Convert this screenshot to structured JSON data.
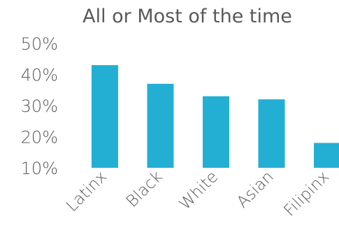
{
  "chart_data": {
    "type": "bar",
    "title": "All or Most of the time",
    "categories": [
      "Latinx",
      "Black",
      "White",
      "Asian",
      "Filipinx"
    ],
    "values": [
      43,
      37,
      33,
      32,
      18
    ],
    "ylim": [
      10,
      50
    ],
    "yticks": [
      "10%",
      "20%",
      "30%",
      "40%",
      "50%"
    ],
    "grid": false,
    "colors": {
      "bar": "#23AFD3",
      "text": "#595959"
    }
  }
}
